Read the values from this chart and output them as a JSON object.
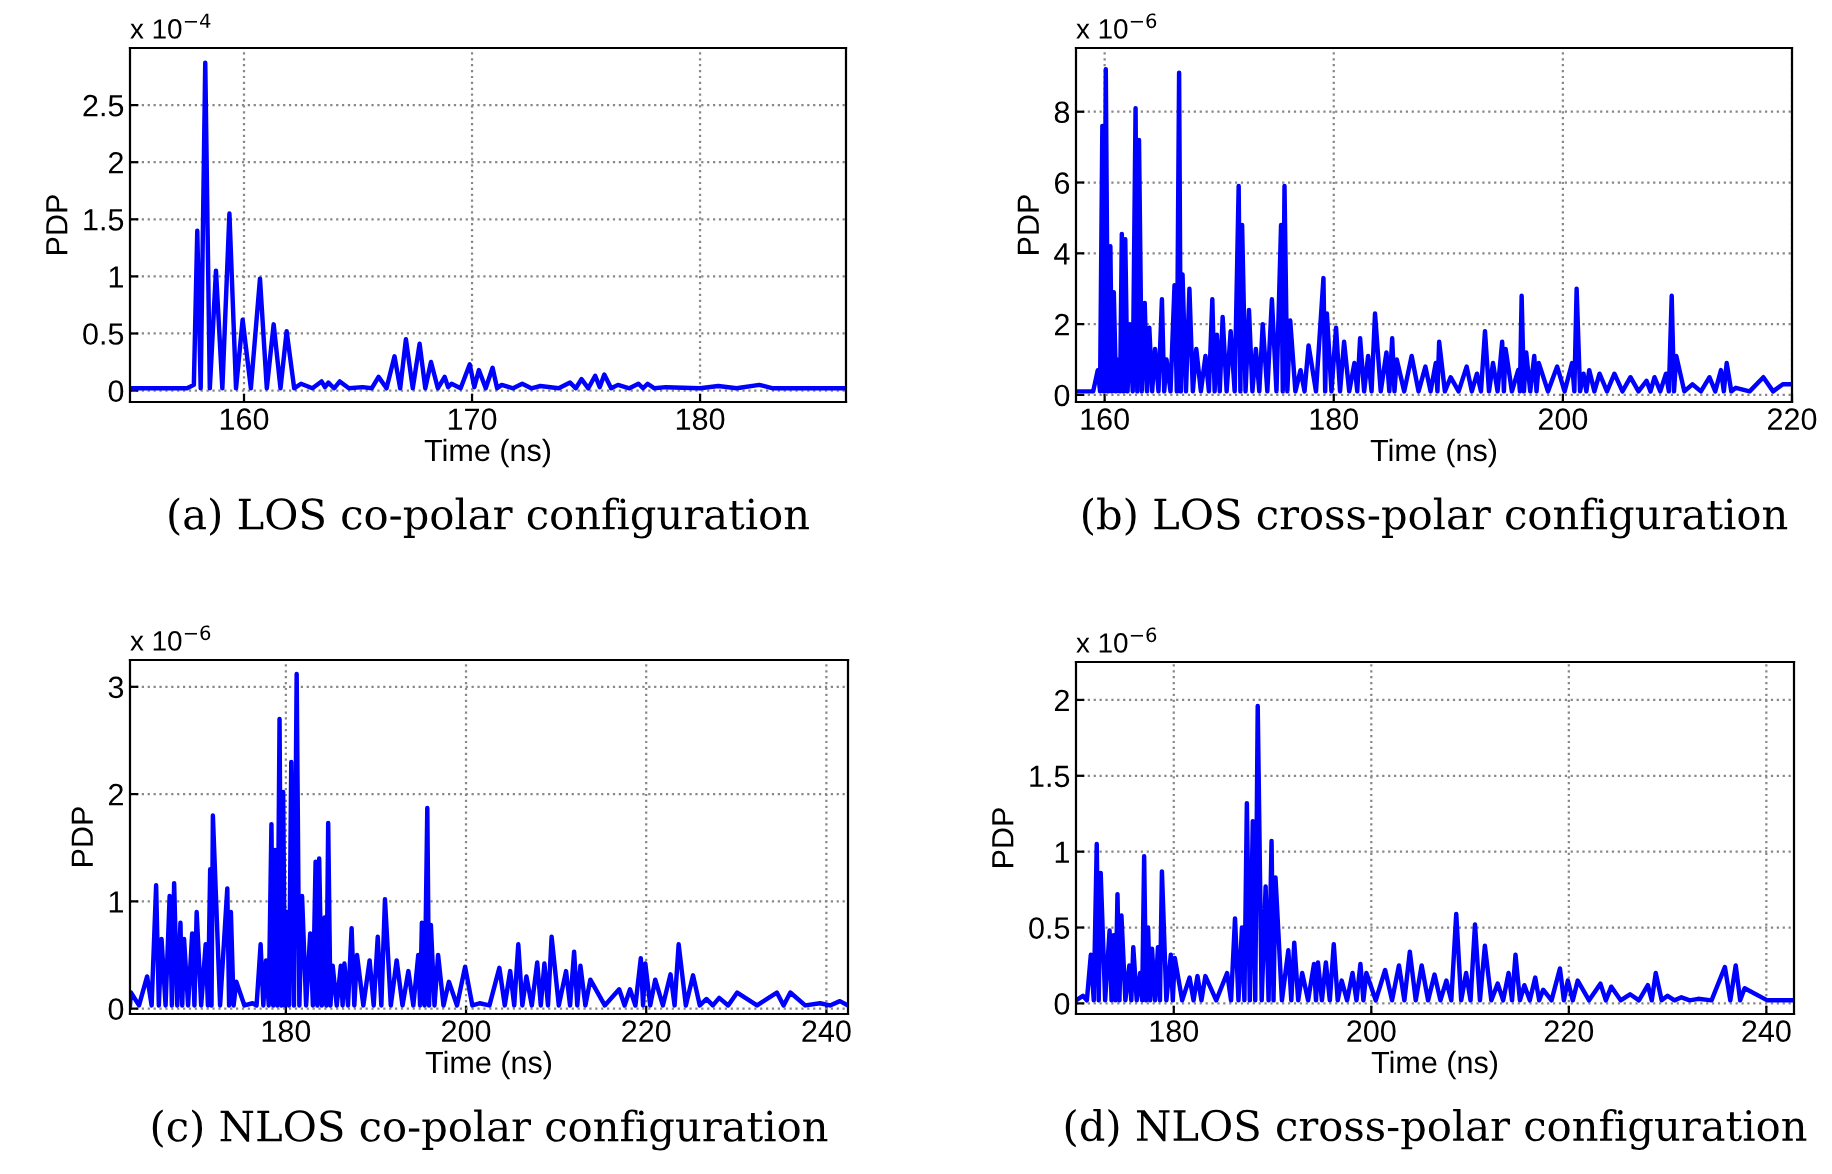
{
  "chart_data": [
    {
      "type": "line",
      "xlabel": "Time (ns)",
      "ylabel": "PDP",
      "annotations": [
        "x 10$^{−4}$",
        "(a) LOS co-polar configuration"
      ],
      "grid": true,
      "xlim": [
        155,
        186.4
      ],
      "ylim": [
        -0.1,
        3
      ],
      "xticks": [
        160,
        170,
        180
      ],
      "yticks": [
        0,
        0.5,
        1,
        1.5,
        2,
        2.5
      ],
      "x": [
        155,
        157.5,
        157.8,
        157.95,
        158.1,
        158.3,
        158.5,
        158.77,
        159.05,
        159.36,
        159.65,
        159.94,
        160.3,
        160.7,
        161.0,
        161.3,
        161.6,
        161.87,
        162.2,
        162.5,
        163.0,
        163.4,
        163.55,
        163.7,
        163.95,
        164.2,
        164.6,
        165.2,
        165.6,
        165.9,
        166.25,
        166.6,
        166.85,
        167.1,
        167.4,
        167.7,
        167.95,
        168.2,
        168.5,
        168.8,
        168.95,
        169.1,
        169.5,
        169.9,
        170.1,
        170.3,
        170.6,
        170.9,
        171.1,
        171.3,
        171.8,
        172.2,
        172.6,
        173.0,
        173.8,
        174.3,
        174.55,
        174.8,
        175.1,
        175.4,
        175.6,
        175.8,
        176.1,
        176.4,
        176.9,
        177.3,
        177.5,
        177.7,
        178.0,
        178.5,
        180.0,
        180.8,
        181.6,
        182.6,
        183.2,
        186.4
      ],
      "series": [
        {
          "color": "#0000ff",
          "values": [
            0.02,
            0.02,
            0.05,
            1.4,
            0.02,
            2.87,
            0.02,
            1.05,
            0.02,
            1.55,
            0.02,
            0.62,
            0.02,
            0.98,
            0.02,
            0.58,
            0.02,
            0.52,
            0.02,
            0.06,
            0.02,
            0.08,
            0.03,
            0.07,
            0.02,
            0.08,
            0.02,
            0.03,
            0.02,
            0.12,
            0.02,
            0.3,
            0.02,
            0.45,
            0.02,
            0.41,
            0.02,
            0.25,
            0.02,
            0.12,
            0.03,
            0.06,
            0.02,
            0.23,
            0.03,
            0.18,
            0.02,
            0.2,
            0.02,
            0.05,
            0.02,
            0.06,
            0.02,
            0.04,
            0.02,
            0.07,
            0.02,
            0.1,
            0.02,
            0.13,
            0.03,
            0.14,
            0.02,
            0.05,
            0.02,
            0.06,
            0.02,
            0.06,
            0.02,
            0.03,
            0.02,
            0.04,
            0.02,
            0.05,
            0.02,
            0.02
          ]
        }
      ]
    },
    {
      "type": "line",
      "xlabel": "Time (ns)",
      "ylabel": "PDP",
      "annotations": [
        "x 10$^{−6}$",
        "(b) LOS cross-polar configuration"
      ],
      "grid": true,
      "xlim": [
        157.5,
        220
      ],
      "ylim": [
        -0.2,
        9.8
      ],
      "xticks": [
        160,
        180,
        200,
        220
      ],
      "yticks": [
        0,
        2,
        4,
        6,
        8
      ],
      "x": [
        157.5,
        159.0,
        159.4,
        159.6,
        159.8,
        159.95,
        160.1,
        160.3,
        160.5,
        160.65,
        160.8,
        161.0,
        161.2,
        161.35,
        161.5,
        161.65,
        161.8,
        162.0,
        162.2,
        162.45,
        162.7,
        162.85,
        163.0,
        163.25,
        163.5,
        163.7,
        163.9,
        164.15,
        164.4,
        164.7,
        165.0,
        165.2,
        165.4,
        165.75,
        166.1,
        166.3,
        166.5,
        166.65,
        166.8,
        167.1,
        167.4,
        167.7,
        168.0,
        168.4,
        168.8,
        169.1,
        169.4,
        169.6,
        169.8,
        170.05,
        170.3,
        170.65,
        171.0,
        171.35,
        171.7,
        171.85,
        172.0,
        172.3,
        172.6,
        172.9,
        173.2,
        173.5,
        173.8,
        174.2,
        174.6,
        175.0,
        175.4,
        175.55,
        175.7,
        175.95,
        176.2,
        176.65,
        177.1,
        177.45,
        177.8,
        178.45,
        179.1,
        179.25,
        179.4,
        179.8,
        180.2,
        180.55,
        180.9,
        181.35,
        181.8,
        182.05,
        182.3,
        182.65,
        183.0,
        183.3,
        183.6,
        184.1,
        184.6,
        184.85,
        185.1,
        185.3,
        185.5,
        186.15,
        186.8,
        187.4,
        188.0,
        188.45,
        188.9,
        189.05,
        189.2,
        189.7,
        190.2,
        190.9,
        191.6,
        192.05,
        192.5,
        192.85,
        193.2,
        193.55,
        193.9,
        194.3,
        194.7,
        194.85,
        195.0,
        195.55,
        196.1,
        196.25,
        196.4,
        196.6,
        196.8,
        197.15,
        197.5,
        197.7,
        197.9,
        198.7,
        199.5,
        200.15,
        200.8,
        201.0,
        201.2,
        201.5,
        201.8,
        202.05,
        202.3,
        202.75,
        203.2,
        203.85,
        204.5,
        205.2,
        205.9,
        206.6,
        207.3,
        207.65,
        208.0,
        208.5,
        209.0,
        209.25,
        209.5,
        209.7,
        209.9,
        210.6,
        211.3,
        212.05,
        212.8,
        213.3,
        213.8,
        214.05,
        214.3,
        214.7,
        215.1,
        216.3,
        217.5,
        218.35,
        219.2,
        220
      ],
      "series": [
        {
          "color": "#0000ff",
          "values": [
            0.1,
            0.1,
            0.7,
            0.1,
            7.6,
            0.1,
            9.2,
            0.1,
            4.2,
            0.1,
            2.9,
            0.1,
            1.0,
            0.1,
            4.55,
            0.1,
            4.4,
            0.1,
            2.0,
            0.1,
            8.1,
            0.1,
            7.2,
            0.1,
            2.6,
            0.1,
            1.9,
            0.1,
            1.3,
            0.1,
            2.7,
            0.1,
            1.0,
            0.1,
            3.1,
            0.1,
            9.1,
            0.1,
            3.4,
            0.1,
            3.0,
            0.1,
            1.3,
            0.1,
            1.1,
            0.1,
            2.7,
            0.1,
            1.7,
            0.1,
            2.2,
            0.1,
            1.8,
            0.1,
            5.9,
            0.1,
            4.8,
            0.1,
            2.4,
            0.1,
            1.3,
            0.1,
            2.0,
            0.1,
            2.7,
            0.1,
            4.8,
            0.1,
            5.9,
            0.1,
            2.1,
            0.1,
            0.7,
            0.1,
            1.4,
            0.1,
            3.3,
            0.1,
            2.3,
            0.1,
            1.9,
            0.1,
            1.5,
            0.1,
            0.9,
            0.1,
            1.6,
            0.1,
            1.1,
            0.1,
            2.3,
            0.1,
            1.2,
            0.1,
            1.6,
            0.1,
            1.0,
            0.1,
            1.1,
            0.1,
            0.8,
            0.1,
            0.9,
            0.1,
            1.5,
            0.1,
            0.5,
            0.1,
            0.8,
            0.1,
            0.6,
            0.1,
            1.8,
            0.1,
            0.9,
            0.1,
            1.5,
            0.1,
            1.3,
            0.1,
            0.7,
            0.1,
            2.8,
            0.1,
            1.2,
            0.1,
            1.1,
            0.1,
            0.9,
            0.1,
            0.8,
            0.1,
            0.9,
            0.1,
            3.0,
            0.1,
            0.6,
            0.1,
            0.7,
            0.1,
            0.6,
            0.1,
            0.6,
            0.1,
            0.5,
            0.1,
            0.4,
            0.1,
            0.5,
            0.1,
            0.6,
            0.1,
            2.8,
            0.1,
            1.1,
            0.1,
            0.3,
            0.1,
            0.5,
            0.1,
            0.7,
            0.1,
            0.9,
            0.1,
            0.2,
            0.1,
            0.5,
            0.1,
            0.3,
            0.3
          ]
        }
      ]
    },
    {
      "type": "line",
      "xlabel": "Time (ns)",
      "ylabel": "PDP",
      "annotations": [
        "x 10$^{−6}$",
        "(c) NLOS co-polar configuration"
      ],
      "grid": true,
      "xlim": [
        162.7,
        242.4
      ],
      "ylim": [
        -0.05,
        3.25
      ],
      "xticks": [
        180,
        200,
        220,
        240
      ],
      "yticks": [
        0,
        1,
        2,
        3
      ],
      "x": [
        162.7,
        162.8,
        163.7,
        164.6,
        165.1,
        165.6,
        165.9,
        166.2,
        166.65,
        167.1,
        167.35,
        167.6,
        167.95,
        168.3,
        168.5,
        168.7,
        169.15,
        169.6,
        169.85,
        170.1,
        170.6,
        171.1,
        171.35,
        171.6,
        171.75,
        171.9,
        172.7,
        173.5,
        173.7,
        173.9,
        174.2,
        174.5,
        175.4,
        176.3,
        176.75,
        177.2,
        177.5,
        177.8,
        178.1,
        178.4,
        178.6,
        178.8,
        179.05,
        179.3,
        179.5,
        179.7,
        179.9,
        180.1,
        180.35,
        180.6,
        180.9,
        181.2,
        181.5,
        181.8,
        182.25,
        182.7,
        183.0,
        183.3,
        183.5,
        183.7,
        184.0,
        184.3,
        184.5,
        184.7,
        184.95,
        185.2,
        185.65,
        186.1,
        186.3,
        186.5,
        186.9,
        187.3,
        187.6,
        187.9,
        188.6,
        189.3,
        189.75,
        190.2,
        190.6,
        191.0,
        191.65,
        192.3,
        192.95,
        193.6,
        194.15,
        194.7,
        194.9,
        195.1,
        195.4,
        195.7,
        195.9,
        196.1,
        196.5,
        196.9,
        197.5,
        198.1,
        199.0,
        199.9,
        200.7,
        201.5,
        202.6,
        203.7,
        204.3,
        204.9,
        205.35,
        205.8,
        206.25,
        206.7,
        207.3,
        207.9,
        208.3,
        208.7,
        209.1,
        209.5,
        210.3,
        211.1,
        211.55,
        212.0,
        212.35,
        212.7,
        213.25,
        213.8,
        215.4,
        217.0,
        217.6,
        218.2,
        218.8,
        219.4,
        219.65,
        219.9,
        220.45,
        221.0,
        221.85,
        222.7,
        223.15,
        223.6,
        224.4,
        225.2,
        225.95,
        226.7,
        227.4,
        228.1,
        229.1,
        230.1,
        232.3,
        234.5,
        235.25,
        236.0,
        237.65,
        239.3,
        240.4,
        241.5,
        242.4
      ],
      "series": [
        {
          "color": "#0000ff",
          "values": [
            0.03,
            0.15,
            0.03,
            0.3,
            0.03,
            1.15,
            0.03,
            0.65,
            0.03,
            1.05,
            0.03,
            1.17,
            0.03,
            0.8,
            0.03,
            0.65,
            0.03,
            0.7,
            0.03,
            0.9,
            0.03,
            0.6,
            0.03,
            1.3,
            0.03,
            1.8,
            0.03,
            1.12,
            0.03,
            0.9,
            0.03,
            0.25,
            0.03,
            0.05,
            0.03,
            0.6,
            0.03,
            0.45,
            0.03,
            1.72,
            0.03,
            1.48,
            0.03,
            2.7,
            0.03,
            2.02,
            0.03,
            0.9,
            0.03,
            2.3,
            0.03,
            3.12,
            0.03,
            1.05,
            0.03,
            0.7,
            0.03,
            1.37,
            0.03,
            1.4,
            0.03,
            0.85,
            0.03,
            1.73,
            0.03,
            0.4,
            0.03,
            0.4,
            0.03,
            0.42,
            0.03,
            0.75,
            0.03,
            0.5,
            0.03,
            0.45,
            0.03,
            0.67,
            0.03,
            1.02,
            0.03,
            0.45,
            0.03,
            0.35,
            0.03,
            0.5,
            0.03,
            0.8,
            0.03,
            1.87,
            0.03,
            0.78,
            0.03,
            0.5,
            0.03,
            0.25,
            0.03,
            0.39,
            0.03,
            0.05,
            0.03,
            0.38,
            0.03,
            0.35,
            0.03,
            0.6,
            0.03,
            0.3,
            0.03,
            0.43,
            0.03,
            0.42,
            0.03,
            0.67,
            0.03,
            0.35,
            0.03,
            0.53,
            0.03,
            0.4,
            0.03,
            0.27,
            0.03,
            0.18,
            0.03,
            0.18,
            0.03,
            0.47,
            0.03,
            0.42,
            0.03,
            0.27,
            0.03,
            0.32,
            0.03,
            0.6,
            0.03,
            0.31,
            0.03,
            0.09,
            0.03,
            0.1,
            0.03,
            0.15,
            0.03,
            0.15,
            0.03,
            0.15,
            0.03,
            0.05,
            0.03,
            0.07,
            0.03
          ]
        }
      ]
    },
    {
      "type": "line",
      "xlabel": "Time (ns)",
      "ylabel": "PDP",
      "annotations": [
        "x 10$^{−6}$",
        "(d) NLOS cross-polar configuration"
      ],
      "grid": true,
      "xlim": [
        170.1,
        242.8
      ],
      "ylim": [
        -0.07,
        2.25
      ],
      "xticks": [
        180,
        200,
        220,
        240
      ],
      "yticks": [
        0,
        0.5,
        1,
        1.5,
        2
      ],
      "x": [
        170.1,
        170.8,
        171.2,
        171.6,
        171.9,
        172.2,
        172.4,
        172.6,
        173.05,
        173.5,
        173.7,
        173.9,
        174.1,
        174.3,
        174.5,
        174.7,
        175.1,
        175.5,
        175.7,
        175.9,
        176.25,
        176.6,
        176.8,
        177.0,
        177.2,
        177.4,
        177.6,
        177.8,
        178.1,
        178.4,
        178.6,
        178.8,
        179.25,
        179.7,
        179.9,
        180.1,
        180.85,
        181.6,
        182.0,
        182.4,
        182.8,
        183.2,
        184.3,
        185.4,
        185.8,
        186.2,
        186.55,
        186.9,
        187.15,
        187.4,
        187.7,
        188.0,
        188.25,
        188.5,
        188.9,
        189.3,
        189.6,
        189.9,
        190.1,
        190.3,
        190.95,
        191.6,
        191.9,
        192.2,
        192.6,
        193.0,
        193.6,
        194.2,
        194.4,
        194.6,
        195.0,
        195.4,
        195.8,
        196.2,
        196.6,
        197.0,
        197.55,
        198.1,
        198.5,
        198.9,
        199.2,
        199.5,
        200.45,
        201.4,
        202.1,
        202.8,
        203.35,
        203.9,
        204.5,
        205.1,
        205.75,
        206.4,
        207.0,
        207.6,
        208.1,
        208.6,
        209.1,
        209.6,
        210.05,
        210.5,
        211.0,
        211.5,
        212.15,
        212.8,
        213.35,
        213.9,
        214.25,
        214.6,
        215.05,
        215.5,
        216.05,
        216.6,
        217.0,
        217.4,
        218.25,
        219.1,
        219.5,
        219.9,
        220.4,
        220.9,
        222.05,
        223.2,
        223.75,
        224.3,
        225.25,
        226.2,
        227.1,
        228.0,
        228.4,
        228.8,
        229.4,
        230.0,
        230.7,
        231.4,
        232.25,
        233.1,
        234.45,
        235.8,
        236.35,
        236.9,
        237.35,
        237.8,
        240.1,
        242.8
      ],
      "series": [
        {
          "color": "#0000ff",
          "values": [
            0.02,
            0.05,
            0.02,
            0.32,
            0.02,
            1.05,
            0.02,
            0.86,
            0.02,
            0.48,
            0.02,
            0.45,
            0.02,
            0.72,
            0.02,
            0.58,
            0.02,
            0.25,
            0.02,
            0.37,
            0.02,
            0.2,
            0.02,
            0.97,
            0.02,
            0.5,
            0.02,
            0.36,
            0.02,
            0.37,
            0.02,
            0.87,
            0.02,
            0.32,
            0.02,
            0.3,
            0.02,
            0.17,
            0.02,
            0.18,
            0.02,
            0.18,
            0.02,
            0.2,
            0.02,
            0.56,
            0.02,
            0.5,
            0.02,
            1.32,
            0.02,
            1.2,
            0.02,
            1.96,
            0.02,
            0.77,
            0.02,
            1.07,
            0.02,
            0.83,
            0.02,
            0.35,
            0.02,
            0.4,
            0.02,
            0.2,
            0.02,
            0.26,
            0.02,
            0.27,
            0.02,
            0.27,
            0.02,
            0.39,
            0.02,
            0.15,
            0.02,
            0.2,
            0.02,
            0.26,
            0.02,
            0.2,
            0.02,
            0.22,
            0.02,
            0.25,
            0.02,
            0.34,
            0.02,
            0.25,
            0.02,
            0.19,
            0.02,
            0.15,
            0.02,
            0.59,
            0.02,
            0.2,
            0.02,
            0.52,
            0.02,
            0.38,
            0.02,
            0.13,
            0.02,
            0.2,
            0.02,
            0.32,
            0.02,
            0.12,
            0.02,
            0.17,
            0.02,
            0.09,
            0.02,
            0.23,
            0.02,
            0.15,
            0.02,
            0.15,
            0.02,
            0.13,
            0.02,
            0.11,
            0.02,
            0.06,
            0.02,
            0.12,
            0.02,
            0.2,
            0.02,
            0.05,
            0.02,
            0.04,
            0.02,
            0.03,
            0.02,
            0.24,
            0.02,
            0.25,
            0.02,
            0.1,
            0.02,
            0.02
          ]
        }
      ]
    }
  ]
}
